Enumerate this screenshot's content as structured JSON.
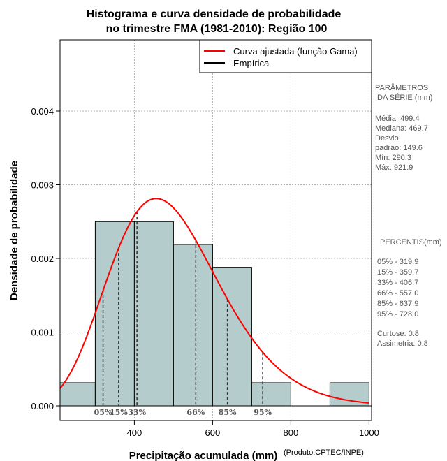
{
  "chart_data": {
    "type": "histogram",
    "title_line1": "Histograma e curva densidade de probabilidade",
    "title_line2": "no trimestre FMA (1981-2010): Região 100",
    "xlabel": "Precipitação acumulada (mm)",
    "ylabel": "Densidade de probabilidade",
    "credit": "(Produto:CPTEC/INPE)",
    "xlim": [
      210,
      1000
    ],
    "ylim": [
      0,
      0.0049
    ],
    "xticks": [
      400,
      600,
      800,
      1000
    ],
    "yticks": [
      0.0,
      0.001,
      0.002,
      0.003,
      0.004
    ],
    "ytick_labels": [
      "0.000",
      "0.001",
      "0.002",
      "0.003",
      "0.004"
    ],
    "bins": [
      {
        "from": 200,
        "to": 300,
        "density": 0.000313
      },
      {
        "from": 300,
        "to": 400,
        "density": 0.0025
      },
      {
        "from": 400,
        "to": 500,
        "density": 0.0025
      },
      {
        "from": 500,
        "to": 600,
        "density": 0.00219
      },
      {
        "from": 600,
        "to": 700,
        "density": 0.00188
      },
      {
        "from": 700,
        "to": 800,
        "density": 0.000313
      },
      {
        "from": 800,
        "to": 900,
        "density": 0.0
      },
      {
        "from": 900,
        "to": 1000,
        "density": 0.000313
      }
    ],
    "gamma_fit": {
      "shape": 11.5,
      "rate": 0.02303
    },
    "percentile_lines": [
      {
        "label": "05%",
        "value": 319.9
      },
      {
        "label": "15%",
        "value": 359.7
      },
      {
        "label": "33%",
        "value": 406.7
      },
      {
        "label": "66%",
        "value": 557.0
      },
      {
        "label": "85%",
        "value": 637.9
      },
      {
        "label": "95%",
        "value": 728.0
      }
    ],
    "legend": [
      {
        "label": "Curva ajustada (função Gama)",
        "color": "#ff0000"
      },
      {
        "label": "Empírica",
        "color": "#000000"
      }
    ],
    "colors": {
      "bar_fill": "#b4cccc",
      "curve": "#ff0000",
      "grid": "#b0b0b0"
    }
  },
  "side_panel": {
    "params_title1": "PARÂMETROS",
    "params_title2": "DA SÉRIE (mm)",
    "params": [
      "Média:  499.4",
      "Mediana:  469.7",
      "Desvio",
      "padrão:  149.6",
      "Mín:  290.3",
      "Máx:  921.9"
    ],
    "percentis_title": "PERCENTIS(mm)",
    "percentis": [
      "05% -   319.9",
      "15% -   359.7",
      "33% -   406.7",
      "66% -   557.0",
      "85% -   637.9",
      "95% -   728.0"
    ],
    "stats": [
      "Curtose:  0.8",
      "Assimetria:  0.8"
    ]
  }
}
